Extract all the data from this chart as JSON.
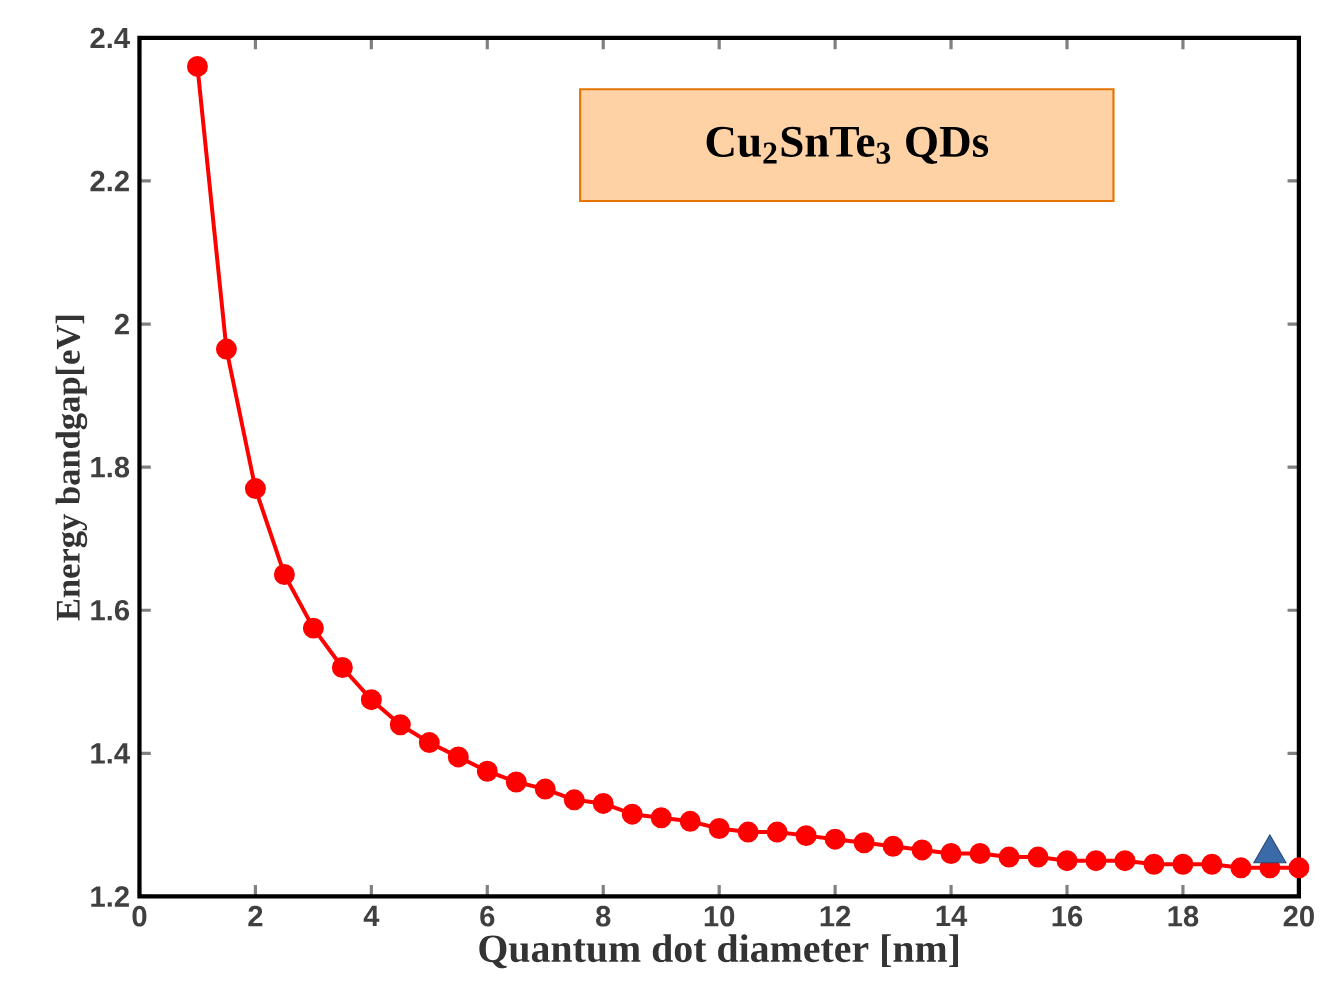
{
  "chart_data": {
    "type": "line",
    "title": "Cu$_{2}$SnTe$_{3}$ QDs",
    "xlabel": "Quantum dot diameter [nm]",
    "ylabel": "Energy bandgap[eV]",
    "xlim": [
      0,
      20
    ],
    "ylim": [
      1.2,
      2.4
    ],
    "xticks": [
      0,
      2,
      4,
      6,
      8,
      10,
      12,
      14,
      16,
      18,
      20
    ],
    "yticks": [
      1.2,
      1.4,
      1.6,
      1.8,
      2,
      2.2,
      2.4
    ],
    "series": [
      {
        "color": "#ff0000",
        "marker": "circle",
        "line_style": "solid",
        "x": [
          1,
          1.5,
          2,
          2.5,
          3,
          3.5,
          4,
          4.5,
          5,
          5.5,
          6,
          6.5,
          7,
          7.5,
          8,
          8.5,
          9,
          9.5,
          10,
          10.5,
          11,
          11.5,
          12,
          12.5,
          13,
          13.5,
          14,
          14.5,
          15,
          15.5,
          16,
          16.5,
          17,
          17.5,
          18,
          18.5,
          19,
          19.5,
          20
        ],
        "values": [
          2.36,
          1.965,
          1.77,
          1.65,
          1.575,
          1.52,
          1.475,
          1.44,
          1.415,
          1.395,
          1.375,
          1.36,
          1.35,
          1.335,
          1.33,
          1.315,
          1.31,
          1.305,
          1.295,
          1.29,
          1.29,
          1.285,
          1.28,
          1.275,
          1.27,
          1.265,
          1.26,
          1.26,
          1.255,
          1.255,
          1.25,
          1.25,
          1.25,
          1.245,
          1.245,
          1.245,
          1.24,
          1.24,
          1.24
        ]
      },
      {
        "type": "scatter",
        "color": "#3a6aa8",
        "marker": "triangle",
        "x": [
          19.5
        ],
        "values": [
          1.26
        ]
      }
    ]
  }
}
